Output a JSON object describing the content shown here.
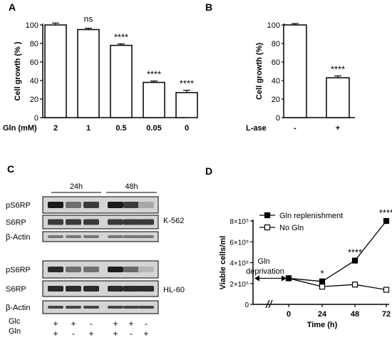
{
  "panels": {
    "A": "A",
    "B": "B",
    "C": "C",
    "D": "D"
  },
  "chart_data": [
    {
      "panel": "A",
      "type": "bar",
      "ylabel": "Cell growth (% )",
      "xlabel": "Gln (mM)",
      "categories": [
        "2",
        "1",
        "0.5",
        "0.05",
        "0"
      ],
      "values": [
        100,
        95,
        78,
        38,
        27
      ],
      "errors": [
        2,
        1.5,
        1.5,
        1.5,
        2.5
      ],
      "significance": [
        "",
        "ns",
        "****",
        "****",
        "****"
      ],
      "ylim": [
        0,
        100
      ],
      "yticks": [
        0,
        20,
        40,
        60,
        80,
        100
      ]
    },
    {
      "panel": "B",
      "type": "bar",
      "ylabel": "Cell growth (%)",
      "xlabel": "L-ase",
      "categories": [
        "-",
        "+"
      ],
      "values": [
        100,
        43
      ],
      "errors": [
        1.5,
        2
      ],
      "significance": [
        "",
        "****"
      ],
      "ylim": [
        0,
        100
      ],
      "yticks": [
        0,
        20,
        40,
        60,
        80,
        100
      ]
    },
    {
      "panel": "D",
      "type": "line",
      "ylabel": "Viable cells/ml",
      "xlabel": "Time (h)",
      "x": [
        0,
        24,
        48,
        72
      ],
      "xticks": [
        "0",
        "24",
        "48",
        "72"
      ],
      "yticks": [
        "0",
        "2×10⁵",
        "4×10⁵",
        "6×10⁵",
        "8×10⁵"
      ],
      "ytick_values": [
        0,
        200000,
        400000,
        600000,
        800000
      ],
      "ylim": [
        0,
        800000
      ],
      "series": [
        {
          "name": "Gln replenishment",
          "marker": "filled-square",
          "values": [
            250000,
            220000,
            420000,
            800000
          ]
        },
        {
          "name": "No Gln",
          "marker": "open-square",
          "values": [
            250000,
            170000,
            190000,
            140000
          ]
        }
      ],
      "significance": [
        "",
        "*",
        "****",
        "****"
      ],
      "annotation": [
        "Gln",
        "deprivation"
      ],
      "legend_position": "top-left"
    }
  ],
  "blot": {
    "time_labels": [
      "24h",
      "48h"
    ],
    "cell_lines": [
      {
        "name": "K-562",
        "rows": [
          "pS6RP",
          "S6RP",
          "β-Actin"
        ]
      },
      {
        "name": "HL-60",
        "rows": [
          "pS6RP",
          "S6RP",
          "β-Actin"
        ]
      }
    ],
    "conditions": [
      {
        "label": "Glc",
        "values": [
          "+",
          "+",
          "-",
          "+",
          "+",
          "-"
        ]
      },
      {
        "label": "Gln",
        "values": [
          "+",
          "-",
          "+",
          "+",
          "-",
          "+"
        ]
      }
    ]
  }
}
